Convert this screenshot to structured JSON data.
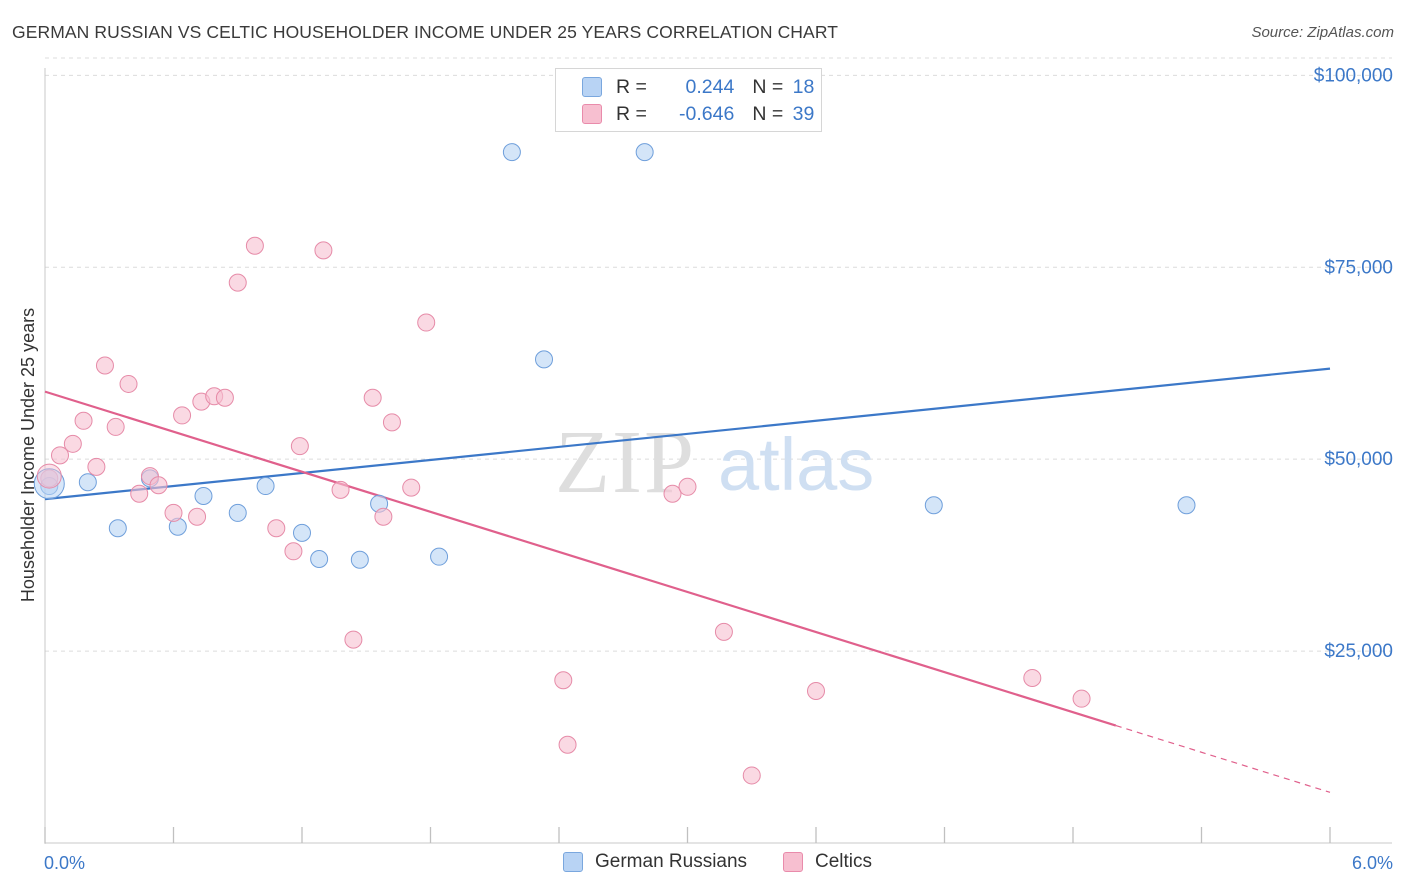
{
  "title": "GERMAN RUSSIAN VS CELTIC HOUSEHOLDER INCOME UNDER 25 YEARS CORRELATION CHART",
  "source": "Source: ZipAtlas.com",
  "watermark": {
    "zip": "ZIP",
    "atlas": "atlas"
  },
  "legend": {
    "rows": [
      {
        "r_label": "R = ",
        "r_value": "0.244",
        "n_label": "N = ",
        "n_value": "18"
      },
      {
        "r_label": "R = ",
        "r_value": "-0.646",
        "n_label": "N = ",
        "n_value": "39"
      }
    ]
  },
  "bottom_legend": {
    "series1": "German Russians",
    "series2": "Celtics"
  },
  "colors": {
    "blue": "#3c78c8",
    "blue_fill": "#b8d3f4",
    "pink": "#e0608c",
    "pink_fill": "#f7bfd0",
    "grid": "#dcdcdc"
  },
  "chart_data": {
    "type": "scatter",
    "title": "GERMAN RUSSIAN VS CELTIC HOUSEHOLDER INCOME UNDER 25 YEARS CORRELATION CHART",
    "xlabel": "",
    "ylabel": "Householder Income Under 25 years",
    "xlim": [
      0,
      6
    ],
    "ylim": [
      0,
      102000
    ],
    "x_tick_labels": [
      "0.0%",
      "6.0%"
    ],
    "y_ticks": [
      25000,
      50000,
      75000,
      100000
    ],
    "y_tick_labels": [
      "$25,000",
      "$50,000",
      "$75,000",
      "$100,000"
    ],
    "grid": true,
    "series": [
      {
        "name": "German Russians",
        "color": "#3c78c8",
        "points": [
          [
            0.02,
            46500
          ],
          [
            0.2,
            47000
          ],
          [
            0.34,
            41000
          ],
          [
            0.49,
            47500
          ],
          [
            0.62,
            41200
          ],
          [
            0.74,
            45200
          ],
          [
            0.9,
            43000
          ],
          [
            1.03,
            46500
          ],
          [
            1.2,
            40400
          ],
          [
            1.28,
            37000
          ],
          [
            1.47,
            36900
          ],
          [
            1.56,
            44200
          ],
          [
            1.84,
            37300
          ],
          [
            2.18,
            90000
          ],
          [
            2.33,
            63000
          ],
          [
            2.8,
            90000
          ],
          [
            4.15,
            44000
          ],
          [
            5.33,
            44000
          ]
        ],
        "trend": {
          "x": [
            0,
            6
          ],
          "y": [
            44800,
            61800
          ]
        }
      },
      {
        "name": "Celtics",
        "color": "#e0608c",
        "points": [
          [
            0.02,
            47500
          ],
          [
            0.07,
            50500
          ],
          [
            0.13,
            52000
          ],
          [
            0.18,
            55000
          ],
          [
            0.24,
            49000
          ],
          [
            0.28,
            62200
          ],
          [
            0.33,
            54200
          ],
          [
            0.39,
            59800
          ],
          [
            0.44,
            45500
          ],
          [
            0.49,
            47800
          ],
          [
            0.53,
            46600
          ],
          [
            0.6,
            43000
          ],
          [
            0.64,
            55700
          ],
          [
            0.71,
            42500
          ],
          [
            0.73,
            57500
          ],
          [
            0.79,
            58200
          ],
          [
            0.84,
            58000
          ],
          [
            0.9,
            73000
          ],
          [
            0.98,
            77800
          ],
          [
            1.08,
            41000
          ],
          [
            1.16,
            38000
          ],
          [
            1.19,
            51700
          ],
          [
            1.3,
            77200
          ],
          [
            1.38,
            46000
          ],
          [
            1.44,
            26500
          ],
          [
            1.53,
            58000
          ],
          [
            1.58,
            42500
          ],
          [
            1.62,
            54800
          ],
          [
            1.71,
            46300
          ],
          [
            1.78,
            67800
          ],
          [
            2.42,
            21200
          ],
          [
            2.44,
            12800
          ],
          [
            2.93,
            45500
          ],
          [
            3.0,
            46400
          ],
          [
            3.17,
            27500
          ],
          [
            3.3,
            8800
          ],
          [
            3.6,
            19800
          ],
          [
            4.61,
            21500
          ],
          [
            4.84,
            18800
          ]
        ],
        "trend": {
          "x": [
            0,
            5.0
          ],
          "y": [
            58800,
            15300
          ]
        },
        "trend_extension": {
          "x": [
            5.0,
            6.0
          ],
          "y": [
            15300,
            6600
          ]
        }
      }
    ]
  }
}
